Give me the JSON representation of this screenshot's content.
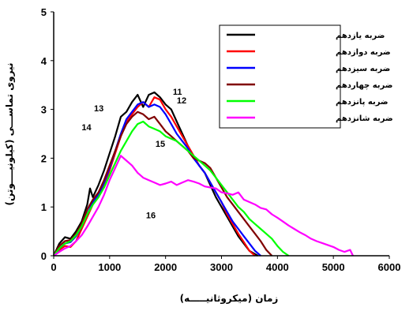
{
  "chart_data": {
    "type": "line",
    "xlabel": "زمان (میکروثانیـــــه)",
    "ylabel": "نیروی تماســـی (کیلونیــــوتن)",
    "xlim": [
      0,
      6000
    ],
    "ylim": [
      0,
      5
    ],
    "xticks": [
      "0",
      "1000",
      "2000",
      "3000",
      "4000",
      "5000",
      "6000"
    ],
    "yticks": [
      "0",
      "1",
      "2",
      "3",
      "4",
      "5"
    ],
    "grid": false,
    "legend_position": "top-right",
    "series": [
      {
        "name": "ضربه یازدهم",
        "color": "#000000",
        "x": [
          0,
          100,
          200,
          300,
          400,
          500,
          600,
          650,
          700,
          800,
          900,
          1000,
          1100,
          1200,
          1300,
          1400,
          1500,
          1600,
          1700,
          1800,
          1900,
          2000,
          2100,
          2200,
          2300,
          2400,
          2500,
          2600,
          2700,
          2800,
          2900,
          3000,
          3100,
          3200,
          3300,
          3400,
          3500,
          3650
        ],
        "y": [
          0,
          0.25,
          0.38,
          0.35,
          0.5,
          0.7,
          1.05,
          1.38,
          1.2,
          1.45,
          1.75,
          2.1,
          2.45,
          2.85,
          2.95,
          3.15,
          3.3,
          3.05,
          3.3,
          3.35,
          3.25,
          3.1,
          3.0,
          2.75,
          2.5,
          2.25,
          2.05,
          1.85,
          1.7,
          1.45,
          1.2,
          1.0,
          0.8,
          0.6,
          0.4,
          0.25,
          0.1,
          0
        ]
      },
      {
        "name": "ضربه دوازدهم",
        "color": "#ff0000",
        "x": [
          0,
          100,
          200,
          300,
          400,
          500,
          600,
          700,
          800,
          900,
          1000,
          1100,
          1200,
          1300,
          1400,
          1500,
          1600,
          1700,
          1800,
          1900,
          2000,
          2100,
          2200,
          2300,
          2400,
          2500,
          2600,
          2700,
          2800,
          2900,
          3000,
          3100,
          3200,
          3300,
          3400,
          3500,
          3600
        ],
        "y": [
          0,
          0.12,
          0.2,
          0.18,
          0.3,
          0.55,
          0.8,
          1.05,
          1.2,
          1.45,
          1.75,
          2.1,
          2.45,
          2.75,
          2.9,
          3.05,
          3.15,
          3.05,
          3.25,
          3.2,
          3.0,
          2.85,
          2.65,
          2.45,
          2.25,
          2.05,
          1.85,
          1.7,
          1.5,
          1.3,
          1.1,
          0.85,
          0.65,
          0.45,
          0.28,
          0.1,
          0
        ]
      },
      {
        "name": "ضربه سیزدهم",
        "color": "#0000ff",
        "x": [
          0,
          100,
          200,
          300,
          400,
          500,
          600,
          700,
          800,
          900,
          1000,
          1100,
          1200,
          1300,
          1400,
          1500,
          1600,
          1700,
          1800,
          1900,
          2000,
          2100,
          2200,
          2300,
          2400,
          2500,
          2600,
          2700,
          2800,
          2900,
          3000,
          3100,
          3200,
          3300,
          3400,
          3500,
          3600,
          3700
        ],
        "y": [
          0,
          0.15,
          0.25,
          0.28,
          0.4,
          0.6,
          0.85,
          1.1,
          1.25,
          1.5,
          1.8,
          2.15,
          2.5,
          2.8,
          2.95,
          3.1,
          3.15,
          3.05,
          3.1,
          3.05,
          2.9,
          2.7,
          2.5,
          2.35,
          2.2,
          2.0,
          1.85,
          1.7,
          1.5,
          1.3,
          1.1,
          0.9,
          0.7,
          0.55,
          0.4,
          0.25,
          0.1,
          0
        ]
      },
      {
        "name": "ضربه چهاردهم",
        "color": "#800000",
        "x": [
          0,
          100,
          200,
          300,
          400,
          500,
          600,
          700,
          800,
          900,
          1000,
          1100,
          1200,
          1300,
          1400,
          1500,
          1600,
          1700,
          1800,
          1900,
          2000,
          2100,
          2200,
          2300,
          2400,
          2500,
          2600,
          2700,
          2800,
          2900,
          3000,
          3100,
          3200,
          3300,
          3400,
          3500,
          3600,
          3700,
          3800,
          3900
        ],
        "y": [
          0,
          0.2,
          0.3,
          0.32,
          0.45,
          0.65,
          0.95,
          1.15,
          1.3,
          1.55,
          1.85,
          2.15,
          2.45,
          2.7,
          2.85,
          2.95,
          2.9,
          2.8,
          2.85,
          2.7,
          2.55,
          2.45,
          2.35,
          2.25,
          2.15,
          2.0,
          1.95,
          1.9,
          1.8,
          1.6,
          1.4,
          1.2,
          1.05,
          0.9,
          0.75,
          0.6,
          0.45,
          0.3,
          0.12,
          0
        ]
      },
      {
        "name": "ضربه پانزدهم",
        "color": "#00ff00",
        "x": [
          0,
          100,
          200,
          300,
          400,
          500,
          600,
          700,
          800,
          900,
          1000,
          1100,
          1200,
          1300,
          1400,
          1500,
          1600,
          1700,
          1800,
          1900,
          2000,
          2100,
          2200,
          2300,
          2400,
          2500,
          2600,
          2700,
          2800,
          2900,
          3000,
          3100,
          3200,
          3300,
          3400,
          3500,
          3600,
          3700,
          3800,
          3900,
          4000,
          4100,
          4200
        ],
        "y": [
          0,
          0.15,
          0.25,
          0.3,
          0.42,
          0.6,
          0.85,
          1.05,
          1.2,
          1.4,
          1.65,
          1.9,
          2.15,
          2.35,
          2.55,
          2.7,
          2.75,
          2.65,
          2.6,
          2.55,
          2.45,
          2.4,
          2.35,
          2.25,
          2.15,
          2.05,
          1.95,
          1.85,
          1.75,
          1.6,
          1.45,
          1.3,
          1.15,
          1.0,
          0.9,
          0.75,
          0.65,
          0.55,
          0.45,
          0.35,
          0.2,
          0.08,
          0
        ]
      },
      {
        "name": "ضربه شانزدهم",
        "color": "#ff00ff",
        "x": [
          0,
          100,
          200,
          300,
          400,
          500,
          600,
          700,
          800,
          900,
          1000,
          1100,
          1200,
          1300,
          1400,
          1500,
          1600,
          1700,
          1800,
          1900,
          2000,
          2100,
          2200,
          2300,
          2400,
          2500,
          2600,
          2700,
          2800,
          2900,
          3000,
          3100,
          3200,
          3300,
          3400,
          3500,
          3600,
          3700,
          3800,
          3900,
          4000,
          4100,
          4200,
          4300,
          4400,
          4500,
          4600,
          4700,
          4800,
          4900,
          5000,
          5100,
          5200,
          5300,
          5350
        ],
        "y": [
          0,
          0.08,
          0.15,
          0.2,
          0.3,
          0.42,
          0.6,
          0.8,
          1.0,
          1.25,
          1.55,
          1.8,
          2.05,
          1.95,
          1.85,
          1.7,
          1.6,
          1.55,
          1.5,
          1.45,
          1.48,
          1.52,
          1.45,
          1.5,
          1.55,
          1.52,
          1.48,
          1.42,
          1.4,
          1.38,
          1.3,
          1.28,
          1.25,
          1.3,
          1.15,
          1.1,
          1.05,
          0.98,
          0.95,
          0.85,
          0.78,
          0.7,
          0.62,
          0.55,
          0.48,
          0.42,
          0.35,
          0.3,
          0.26,
          0.22,
          0.18,
          0.12,
          0.08,
          0.12,
          0
        ]
      }
    ],
    "annotations": [
      {
        "text": "11",
        "x": 2130,
        "y": 3.3
      },
      {
        "text": "12",
        "x": 2200,
        "y": 3.12
      },
      {
        "text": "13",
        "x": 720,
        "y": 2.96
      },
      {
        "text": "14",
        "x": 500,
        "y": 2.57
      },
      {
        "text": "15",
        "x": 1820,
        "y": 2.23
      },
      {
        "text": "16",
        "x": 1650,
        "y": 0.77
      }
    ]
  }
}
